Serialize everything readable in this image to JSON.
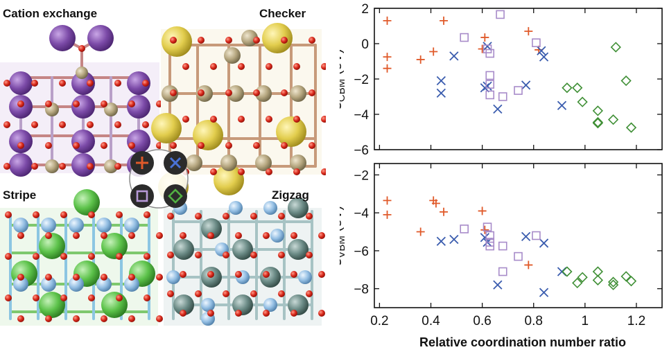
{
  "labels": {
    "cation_exchange": "Cation exchange",
    "checker": "Checker",
    "stripe": "Stripe",
    "zigzag": "Zigzag"
  },
  "legend_symbols": [
    {
      "name": "plus",
      "color": "#e05a2a"
    },
    {
      "name": "cross",
      "color": "#3a5cae"
    },
    {
      "name": "square",
      "color": "#a78bc9"
    },
    {
      "name": "diamond",
      "color": "#3f8f35"
    }
  ],
  "colors": {
    "plus": "#e05a2a",
    "cross": "#3a5cae",
    "square": "#a78bc9",
    "diamond": "#3f8f35"
  },
  "chart_data": [
    {
      "type": "scatter",
      "ylabel_main": "ε",
      "ylabel_sub": "CBM",
      "ylabel_unit": " (eV)",
      "ylim": [
        -6,
        2
      ],
      "xlim": [
        0.18,
        1.3
      ],
      "yticks": [
        2,
        0,
        -2,
        -4,
        -6
      ],
      "series": [
        {
          "marker": "plus",
          "points": [
            [
              0.23,
              1.3
            ],
            [
              0.23,
              -0.75
            ],
            [
              0.23,
              -1.4
            ],
            [
              0.36,
              -0.9
            ],
            [
              0.41,
              -0.45
            ],
            [
              0.45,
              1.3
            ],
            [
              0.6,
              -0.3
            ],
            [
              0.61,
              0.35
            ],
            [
              0.78,
              0.7
            ],
            [
              0.82,
              -0.35
            ]
          ]
        },
        {
          "marker": "cross",
          "points": [
            [
              0.44,
              -2.1
            ],
            [
              0.44,
              -2.8
            ],
            [
              0.49,
              -0.7
            ],
            [
              0.61,
              -2.5
            ],
            [
              0.62,
              -0.15
            ],
            [
              0.62,
              -2.4
            ],
            [
              0.66,
              -3.7
            ],
            [
              0.77,
              -2.35
            ],
            [
              0.83,
              -0.4
            ],
            [
              0.84,
              -0.75
            ],
            [
              0.91,
              -3.5
            ]
          ]
        },
        {
          "marker": "square",
          "points": [
            [
              0.53,
              0.35
            ],
            [
              0.62,
              -0.3
            ],
            [
              0.63,
              -0.55
            ],
            [
              0.63,
              -1.8
            ],
            [
              0.63,
              -2.3
            ],
            [
              0.63,
              -2.9
            ],
            [
              0.67,
              1.65
            ],
            [
              0.68,
              -3.0
            ],
            [
              0.74,
              -2.65
            ],
            [
              0.81,
              0.05
            ]
          ]
        },
        {
          "marker": "diamond",
          "points": [
            [
              0.93,
              -2.5
            ],
            [
              0.97,
              -2.5
            ],
            [
              0.99,
              -3.3
            ],
            [
              1.05,
              -3.8
            ],
            [
              1.05,
              -4.45
            ],
            [
              1.05,
              -4.5
            ],
            [
              1.11,
              -4.3
            ],
            [
              1.12,
              -0.2
            ],
            [
              1.16,
              -2.1
            ],
            [
              1.18,
              -4.75
            ]
          ]
        }
      ]
    },
    {
      "type": "scatter",
      "ylabel_main": "ε",
      "ylabel_sub": "VBM",
      "ylabel_unit": " (eV)",
      "ylim": [
        -9,
        -1.4
      ],
      "xlim": [
        0.18,
        1.3
      ],
      "yticks": [
        -2,
        -4,
        -6,
        -8
      ],
      "xticks": [
        0.2,
        0.4,
        0.6,
        0.8,
        1,
        1.2
      ],
      "xlabel": "Relative coordination number ratio",
      "series": [
        {
          "marker": "plus",
          "points": [
            [
              0.23,
              -3.35
            ],
            [
              0.23,
              -4.1
            ],
            [
              0.36,
              -5.0
            ],
            [
              0.41,
              -3.35
            ],
            [
              0.42,
              -3.5
            ],
            [
              0.45,
              -3.95
            ],
            [
              0.6,
              -3.9
            ],
            [
              0.61,
              -4.9
            ],
            [
              0.78,
              -6.75
            ]
          ]
        },
        {
          "marker": "cross",
          "points": [
            [
              0.44,
              -5.5
            ],
            [
              0.49,
              -5.4
            ],
            [
              0.61,
              -5.3
            ],
            [
              0.62,
              -5.55
            ],
            [
              0.66,
              -7.8
            ],
            [
              0.77,
              -5.25
            ],
            [
              0.84,
              -5.6
            ],
            [
              0.84,
              -8.2
            ],
            [
              0.91,
              -7.1
            ]
          ]
        },
        {
          "marker": "square",
          "points": [
            [
              0.53,
              -4.85
            ],
            [
              0.62,
              -4.75
            ],
            [
              0.63,
              -5.2
            ],
            [
              0.63,
              -5.55
            ],
            [
              0.63,
              -5.75
            ],
            [
              0.68,
              -5.75
            ],
            [
              0.68,
              -7.1
            ],
            [
              0.74,
              -6.3
            ],
            [
              0.81,
              -5.2
            ]
          ]
        },
        {
          "marker": "diamond",
          "points": [
            [
              0.93,
              -7.1
            ],
            [
              0.97,
              -7.7
            ],
            [
              0.99,
              -7.4
            ],
            [
              1.05,
              -7.1
            ],
            [
              1.05,
              -7.55
            ],
            [
              1.11,
              -7.65
            ],
            [
              1.11,
              -7.8
            ],
            [
              1.16,
              -7.35
            ],
            [
              1.18,
              -7.6
            ]
          ]
        }
      ]
    }
  ]
}
